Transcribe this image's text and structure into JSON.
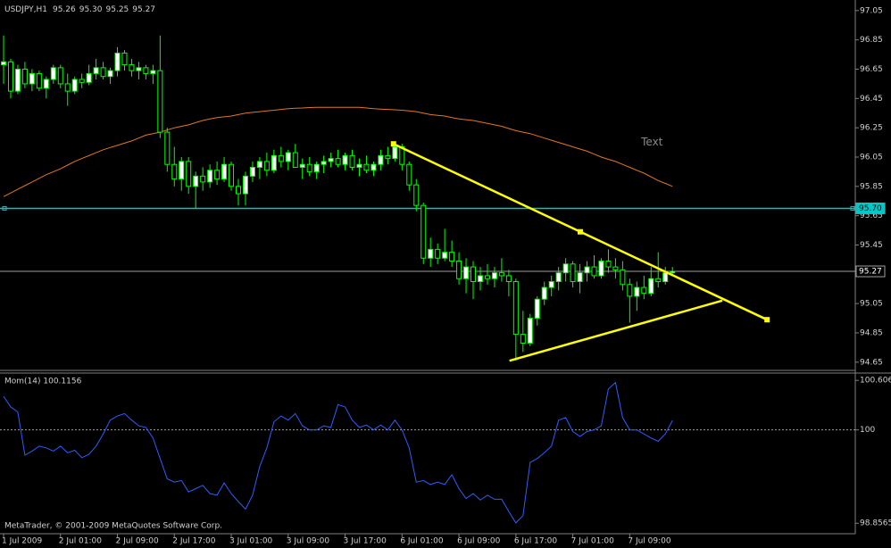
{
  "footer": "MetaTrader, © 2001-2009 MetaQuotes Software Corp.",
  "chart_data": [
    {
      "type": "candlestick",
      "title": "USDJPY,H1",
      "header_values": [
        "95.26",
        "95.30",
        "95.25",
        "95.27"
      ],
      "color": "#00ff00",
      "up_color": "#ffffff",
      "down_color": "#000000",
      "categories": [
        "1 Jul 2009",
        null,
        null,
        null,
        null,
        null,
        null,
        null,
        "2 Jul 01:00",
        null,
        null,
        null,
        null,
        null,
        null,
        null,
        "2 Jul 09:00",
        null,
        null,
        null,
        null,
        null,
        null,
        null,
        "2 Jul 17:00",
        null,
        null,
        null,
        null,
        null,
        null,
        null,
        "3 Jul 01:00",
        null,
        null,
        null,
        null,
        null,
        null,
        null,
        "3 Jul 09:00",
        null,
        null,
        null,
        null,
        null,
        null,
        null,
        "3 Jul 17:00",
        null,
        null,
        null,
        null,
        null,
        null,
        null,
        "6 Jul 01:00",
        null,
        null,
        null,
        null,
        null,
        null,
        null,
        "6 Jul 09:00",
        null,
        null,
        null,
        null,
        null,
        null,
        null,
        "6 Jul 17:00",
        null,
        null,
        null,
        null,
        null,
        null,
        null,
        "7 Jul 01:00",
        null,
        null,
        null,
        null,
        null,
        null,
        null,
        "7 Jul 09:00",
        null,
        null,
        null,
        null,
        null,
        null
      ],
      "candles": [
        [
          96.68,
          96.88,
          96.55,
          96.7
        ],
        [
          96.7,
          96.72,
          96.45,
          96.5
        ],
        [
          96.5,
          96.68,
          96.48,
          96.65
        ],
        [
          96.65,
          96.7,
          96.52,
          96.55
        ],
        [
          96.55,
          96.65,
          96.5,
          96.62
        ],
        [
          96.62,
          96.64,
          96.5,
          96.52
        ],
        [
          96.52,
          96.6,
          96.45,
          96.58
        ],
        [
          96.58,
          96.68,
          96.55,
          96.66
        ],
        [
          96.66,
          96.68,
          96.52,
          96.55
        ],
        [
          96.55,
          96.62,
          96.4,
          96.5
        ],
        [
          96.5,
          96.6,
          96.48,
          96.58
        ],
        [
          96.58,
          96.62,
          96.52,
          96.56
        ],
        [
          96.56,
          96.68,
          96.54,
          96.62
        ],
        [
          96.62,
          96.72,
          96.58,
          96.66
        ],
        [
          96.66,
          96.7,
          96.58,
          96.6
        ],
        [
          96.6,
          96.66,
          96.55,
          96.64
        ],
        [
          96.64,
          96.8,
          96.6,
          96.76
        ],
        [
          96.76,
          96.78,
          96.64,
          96.68
        ],
        [
          96.68,
          96.72,
          96.6,
          96.64
        ],
        [
          96.64,
          96.7,
          96.58,
          96.66
        ],
        [
          96.66,
          96.68,
          96.58,
          96.62
        ],
        [
          96.62,
          96.68,
          96.55,
          96.64
        ],
        [
          96.64,
          96.88,
          96.18,
          96.22
        ],
        [
          96.22,
          96.25,
          95.95,
          96.0
        ],
        [
          96.0,
          96.12,
          95.85,
          95.9
        ],
        [
          95.9,
          96.05,
          95.82,
          96.02
        ],
        [
          96.02,
          96.05,
          95.8,
          95.85
        ],
        [
          95.85,
          95.95,
          95.7,
          95.92
        ],
        [
          95.92,
          95.98,
          95.82,
          95.88
        ],
        [
          95.88,
          96.0,
          95.84,
          95.96
        ],
        [
          95.96,
          96.02,
          95.86,
          95.9
        ],
        [
          95.9,
          96.05,
          95.88,
          96.0
        ],
        [
          96.0,
          96.02,
          95.82,
          95.85
        ],
        [
          95.85,
          95.9,
          95.72,
          95.8
        ],
        [
          95.8,
          95.95,
          95.72,
          95.92
        ],
        [
          95.92,
          96.02,
          95.88,
          95.98
        ],
        [
          95.98,
          96.05,
          95.9,
          96.02
        ],
        [
          96.02,
          96.08,
          95.92,
          95.96
        ],
        [
          95.96,
          96.1,
          95.94,
          96.06
        ],
        [
          96.06,
          96.12,
          95.98,
          96.02
        ],
        [
          96.02,
          96.1,
          95.96,
          96.08
        ],
        [
          96.08,
          96.14,
          96.0,
          95.98
        ],
        [
          95.98,
          96.04,
          95.9,
          96.0
        ],
        [
          96.0,
          96.05,
          95.92,
          95.95
        ],
        [
          95.95,
          96.02,
          95.9,
          96.0
        ],
        [
          96.0,
          96.06,
          95.94,
          96.02
        ],
        [
          96.02,
          96.08,
          95.98,
          96.04
        ],
        [
          96.04,
          96.1,
          95.98,
          96.0
        ],
        [
          96.0,
          96.08,
          95.96,
          96.06
        ],
        [
          96.06,
          96.1,
          95.96,
          95.98
        ],
        [
          95.98,
          96.04,
          95.92,
          96.0
        ],
        [
          96.0,
          96.06,
          95.94,
          95.96
        ],
        [
          95.96,
          96.02,
          95.92,
          96.0
        ],
        [
          96.0,
          96.1,
          95.96,
          96.06
        ],
        [
          96.06,
          96.12,
          96.0,
          96.04
        ],
        [
          96.04,
          96.15,
          96.02,
          96.12
        ],
        [
          96.12,
          96.14,
          95.96,
          96.0
        ],
        [
          96.0,
          96.02,
          95.82,
          95.86
        ],
        [
          95.86,
          95.9,
          95.68,
          95.72
        ],
        [
          95.72,
          95.74,
          95.32,
          95.36
        ],
        [
          95.36,
          95.5,
          95.3,
          95.42
        ],
        [
          95.42,
          95.46,
          95.32,
          95.36
        ],
        [
          95.36,
          95.56,
          95.34,
          95.4
        ],
        [
          95.4,
          95.48,
          95.3,
          95.34
        ],
        [
          95.34,
          95.4,
          95.18,
          95.22
        ],
        [
          95.22,
          95.36,
          95.12,
          95.3
        ],
        [
          95.3,
          95.34,
          95.08,
          95.2
        ],
        [
          95.2,
          95.3,
          95.14,
          95.24
        ],
        [
          95.24,
          95.32,
          95.18,
          95.22
        ],
        [
          95.22,
          95.3,
          95.16,
          95.26
        ],
        [
          95.26,
          95.36,
          95.2,
          95.24
        ],
        [
          95.24,
          95.28,
          95.1,
          95.2
        ],
        [
          95.2,
          95.22,
          94.66,
          94.84
        ],
        [
          94.84,
          95.0,
          94.72,
          94.78
        ],
        [
          94.78,
          94.98,
          94.76,
          94.95
        ],
        [
          94.95,
          95.1,
          94.9,
          95.08
        ],
        [
          95.08,
          95.2,
          95.04,
          95.16
        ],
        [
          95.16,
          95.24,
          95.1,
          95.2
        ],
        [
          95.2,
          95.3,
          95.14,
          95.26
        ],
        [
          95.26,
          95.36,
          95.2,
          95.32
        ],
        [
          95.32,
          95.34,
          95.16,
          95.2
        ],
        [
          95.2,
          95.32,
          95.12,
          95.26
        ],
        [
          95.26,
          95.34,
          95.2,
          95.3
        ],
        [
          95.3,
          95.38,
          95.22,
          95.24
        ],
        [
          95.24,
          95.36,
          95.22,
          95.34
        ],
        [
          95.34,
          95.42,
          95.26,
          95.3
        ],
        [
          95.3,
          95.36,
          95.22,
          95.28
        ],
        [
          95.28,
          95.34,
          95.14,
          95.18
        ],
        [
          95.18,
          95.22,
          94.92,
          95.1
        ],
        [
          95.1,
          95.2,
          95.0,
          95.16
        ],
        [
          95.16,
          95.24,
          95.08,
          95.12
        ],
        [
          95.12,
          95.3,
          95.1,
          95.22
        ],
        [
          95.22,
          95.4,
          95.16,
          95.2
        ],
        [
          95.2,
          95.3,
          95.18,
          95.26
        ],
        [
          95.26,
          95.3,
          95.25,
          95.27
        ]
      ],
      "ma": {
        "color": "#e07820",
        "values": [
          95.78,
          95.805,
          95.83,
          95.855,
          95.88,
          95.905,
          95.93,
          95.95,
          95.97,
          95.995,
          96.02,
          96.04,
          96.06,
          96.08,
          96.1,
          96.115,
          96.13,
          96.145,
          96.16,
          96.18,
          96.2,
          96.21,
          96.22,
          96.235,
          96.25,
          96.26,
          96.27,
          96.285,
          96.3,
          96.31,
          96.32,
          96.325,
          96.33,
          96.34,
          96.35,
          96.355,
          96.36,
          96.365,
          96.37,
          96.375,
          96.38,
          96.383,
          96.385,
          96.388,
          96.39,
          96.39,
          96.39,
          96.39,
          96.39,
          96.39,
          96.39,
          96.385,
          96.38,
          96.378,
          96.375,
          96.373,
          96.37,
          96.365,
          96.36,
          96.35,
          96.34,
          96.335,
          96.33,
          96.32,
          96.31,
          96.305,
          96.3,
          96.29,
          96.28,
          96.27,
          96.26,
          96.245,
          96.23,
          96.22,
          96.21,
          96.195,
          96.18,
          96.165,
          96.15,
          96.135,
          96.12,
          96.105,
          96.09,
          96.07,
          96.05,
          96.035,
          96.02,
          96.0,
          95.98,
          95.96,
          95.94,
          95.915,
          95.89,
          95.87,
          95.85
        ]
      },
      "ylim": [
        94.6,
        97.11
      ],
      "yticks": [
        97.05,
        96.85,
        96.65,
        96.45,
        96.25,
        96.05,
        95.85,
        95.65,
        95.45,
        95.05,
        94.85,
        94.65
      ],
      "price_lines": [
        {
          "value": 95.7,
          "label": "95.70",
          "color": "#00c8c8"
        },
        {
          "value": 95.27,
          "label": "95.27",
          "color": "#a0a0a0"
        }
      ],
      "trendlines": [
        {
          "color": "#ffff00",
          "points": [
            [
              54.8,
              96.14
            ],
            [
              107.3,
              94.94
            ]
          ]
        },
        {
          "color": "#ffff00",
          "points": [
            [
              71.1,
              94.66
            ],
            [
              101.0,
              95.07
            ]
          ]
        }
      ],
      "text_objects": [
        {
          "text": "Text",
          "x": 89.6,
          "y": 96.15,
          "color": "#8a8a8a"
        }
      ]
    },
    {
      "type": "line",
      "title": "Mom(14) 100.1156",
      "series": [
        {
          "name": "Mom(14)",
          "color": "#2f5cff",
          "values": [
            100.41,
            100.28,
            100.22,
            99.69,
            99.74,
            99.8,
            99.78,
            99.74,
            99.8,
            99.72,
            99.75,
            99.66,
            99.7,
            99.8,
            99.95,
            100.12,
            100.17,
            100.2,
            100.12,
            100.05,
            100.03,
            99.9,
            99.65,
            99.4,
            99.36,
            99.38,
            99.24,
            99.28,
            99.32,
            99.22,
            99.2,
            99.35,
            99.22,
            99.12,
            99.03,
            99.2,
            99.55,
            99.78,
            100.1,
            100.17,
            100.12,
            100.2,
            100.05,
            100.0,
            100.0,
            100.05,
            100.03,
            100.31,
            100.28,
            100.12,
            100.03,
            100.06,
            100.0,
            100.06,
            100.0,
            100.12,
            100.0,
            99.78,
            99.36,
            99.38,
            99.33,
            99.36,
            99.33,
            99.45,
            99.28,
            99.16,
            99.22,
            99.14,
            99.2,
            99.15,
            99.15,
            99.0,
            98.86,
            98.95,
            99.6,
            99.65,
            99.72,
            99.8,
            100.12,
            100.15,
            99.98,
            99.92,
            99.98,
            100.0,
            100.05,
            100.5,
            100.58,
            100.15,
            100.0,
            100.0,
            99.95,
            99.9,
            99.86,
            99.95,
            100.1156
          ]
        }
      ],
      "ylim": [
        98.728,
        100.674
      ],
      "yticks": [
        100.606,
        100,
        98.8565
      ],
      "levels": [
        100
      ]
    }
  ]
}
